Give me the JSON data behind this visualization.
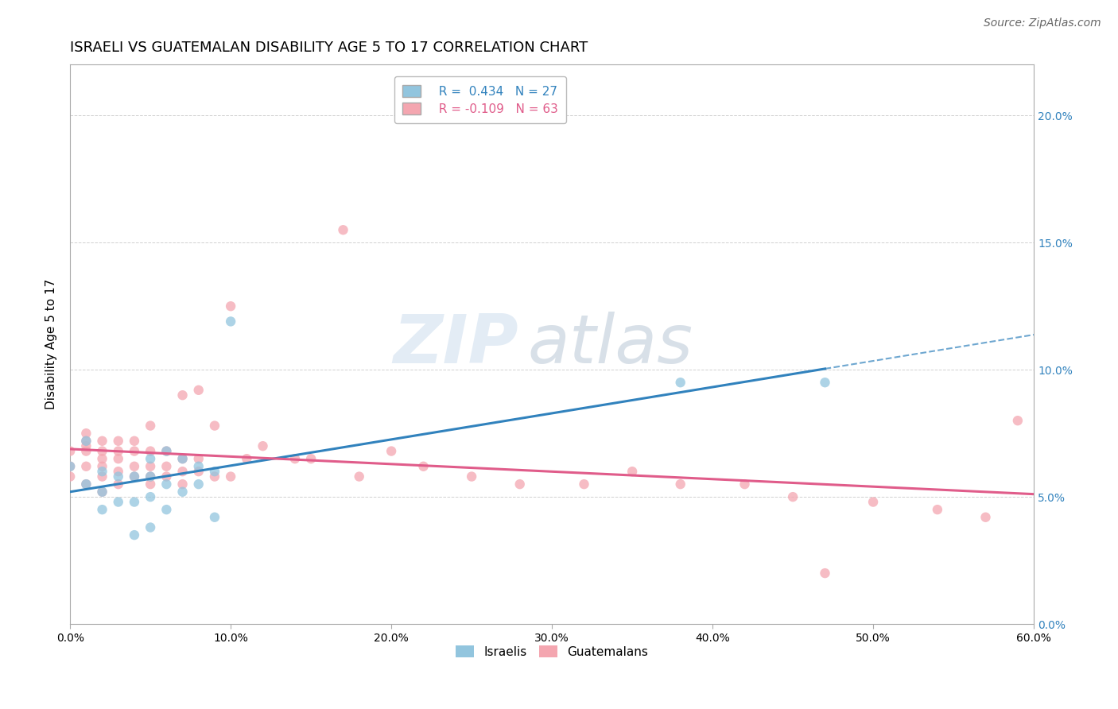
{
  "title": "ISRAELI VS GUATEMALAN DISABILITY AGE 5 TO 17 CORRELATION CHART",
  "source": "Source: ZipAtlas.com",
  "ylabel": "Disability Age 5 to 17",
  "xlabel": "",
  "xlim": [
    0.0,
    0.6
  ],
  "ylim": [
    0.0,
    0.22
  ],
  "xticks": [
    0.0,
    0.1,
    0.2,
    0.3,
    0.4,
    0.5,
    0.6
  ],
  "xticklabels": [
    "0.0%",
    "10.0%",
    "20.0%",
    "30.0%",
    "40.0%",
    "50.0%",
    "60.0%"
  ],
  "yticks": [
    0.0,
    0.05,
    0.1,
    0.15,
    0.2
  ],
  "yticklabels": [
    "0.0%",
    "5.0%",
    "10.0%",
    "15.0%",
    "20.0%"
  ],
  "israeli_color": "#92C5DE",
  "guatemalan_color": "#F4A6B0",
  "trendline_israeli_color": "#3182BD",
  "trendline_guatemalan_color": "#E05C8A",
  "watermark_zip": "ZIP",
  "watermark_atlas": "atlas",
  "legend_r_israeli": "R =  0.434",
  "legend_n_israeli": "N = 27",
  "legend_r_guatemalan": "R = -0.109",
  "legend_n_guatemalan": "N = 63",
  "israeli_x": [
    0.0,
    0.01,
    0.01,
    0.02,
    0.02,
    0.02,
    0.03,
    0.03,
    0.04,
    0.04,
    0.04,
    0.05,
    0.05,
    0.05,
    0.05,
    0.06,
    0.06,
    0.06,
    0.07,
    0.07,
    0.08,
    0.08,
    0.09,
    0.09,
    0.1,
    0.38,
    0.47
  ],
  "israeli_y": [
    0.062,
    0.055,
    0.072,
    0.045,
    0.052,
    0.06,
    0.048,
    0.058,
    0.035,
    0.048,
    0.058,
    0.038,
    0.05,
    0.058,
    0.065,
    0.045,
    0.055,
    0.068,
    0.052,
    0.065,
    0.055,
    0.062,
    0.042,
    0.06,
    0.119,
    0.095,
    0.095
  ],
  "guatemalan_x": [
    0.0,
    0.0,
    0.0,
    0.01,
    0.01,
    0.01,
    0.01,
    0.01,
    0.01,
    0.02,
    0.02,
    0.02,
    0.02,
    0.02,
    0.02,
    0.03,
    0.03,
    0.03,
    0.03,
    0.03,
    0.04,
    0.04,
    0.04,
    0.04,
    0.05,
    0.05,
    0.05,
    0.05,
    0.05,
    0.06,
    0.06,
    0.06,
    0.07,
    0.07,
    0.07,
    0.07,
    0.08,
    0.08,
    0.08,
    0.09,
    0.09,
    0.1,
    0.1,
    0.11,
    0.12,
    0.14,
    0.15,
    0.17,
    0.18,
    0.2,
    0.22,
    0.25,
    0.28,
    0.32,
    0.35,
    0.38,
    0.42,
    0.45,
    0.47,
    0.5,
    0.54,
    0.57,
    0.59
  ],
  "guatemalan_y": [
    0.058,
    0.062,
    0.068,
    0.055,
    0.062,
    0.068,
    0.07,
    0.072,
    0.075,
    0.052,
    0.058,
    0.062,
    0.065,
    0.068,
    0.072,
    0.055,
    0.06,
    0.065,
    0.068,
    0.072,
    0.058,
    0.062,
    0.068,
    0.072,
    0.055,
    0.058,
    0.062,
    0.068,
    0.078,
    0.058,
    0.062,
    0.068,
    0.055,
    0.06,
    0.065,
    0.09,
    0.06,
    0.065,
    0.092,
    0.058,
    0.078,
    0.058,
    0.125,
    0.065,
    0.07,
    0.065,
    0.065,
    0.155,
    0.058,
    0.068,
    0.062,
    0.058,
    0.055,
    0.055,
    0.06,
    0.055,
    0.055,
    0.05,
    0.02,
    0.048,
    0.045,
    0.042,
    0.08
  ],
  "title_fontsize": 13,
  "axis_fontsize": 11,
  "tick_fontsize": 10,
  "source_fontsize": 10,
  "legend_fontsize": 11
}
